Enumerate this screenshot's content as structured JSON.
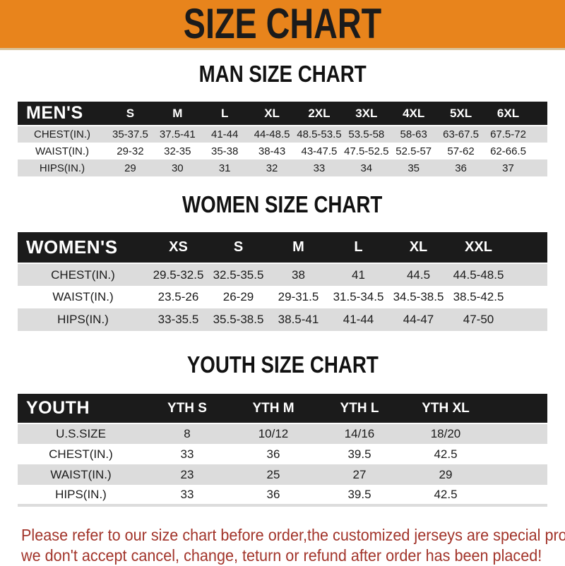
{
  "banner": {
    "title": "SIZE CHART"
  },
  "sections": {
    "man": {
      "title": "MAN SIZE CHART",
      "table": {
        "label": "MEN'S",
        "sizes": [
          "S",
          "M",
          "L",
          "XL",
          "2XL",
          "3XL",
          "4XL",
          "5XL",
          "6XL"
        ],
        "rows": [
          {
            "label": "CHEST(IN.)",
            "values": [
              "35-37.5",
              "37.5-41",
              "41-44",
              "44-48.5",
              "48.5-53.5",
              "53.5-58",
              "58-63",
              "63-67.5",
              "67.5-72"
            ]
          },
          {
            "label": "WAIST(IN.)",
            "values": [
              "29-32",
              "32-35",
              "35-38",
              "38-43",
              "43-47.5",
              "47.5-52.5",
              "52.5-57",
              "57-62",
              "62-66.5"
            ]
          },
          {
            "label": "HIPS(IN.)",
            "values": [
              "29",
              "30",
              "31",
              "32",
              "33",
              "34",
              "35",
              "36",
              "37"
            ]
          }
        ]
      }
    },
    "women": {
      "title": "WOMEN SIZE CHART",
      "table": {
        "label": "WOMEN'S",
        "sizes": [
          "XS",
          "S",
          "M",
          "L",
          "XL",
          "XXL"
        ],
        "rows": [
          {
            "label": "CHEST(IN.)",
            "values": [
              "29.5-32.5",
              "32.5-35.5",
              "38",
              "41",
              "44.5",
              "44.5-48.5"
            ]
          },
          {
            "label": "WAIST(IN.)",
            "values": [
              "23.5-26",
              "26-29",
              "29-31.5",
              "31.5-34.5",
              "34.5-38.5",
              "38.5-42.5"
            ]
          },
          {
            "label": "HIPS(IN.)",
            "values": [
              "33-35.5",
              "35.5-38.5",
              "38.5-41",
              "41-44",
              "44-47",
              "47-50"
            ]
          }
        ]
      }
    },
    "youth": {
      "title": "YOUTH SIZE CHART",
      "table": {
        "label": "YOUTH",
        "sizes": [
          "YTH S",
          "YTH M",
          "YTH L",
          "YTH XL"
        ],
        "rows": [
          {
            "label": "U.S.SIZE",
            "values": [
              "8",
              "10/12",
              "14/16",
              "18/20"
            ]
          },
          {
            "label": "CHEST(IN.)",
            "values": [
              "33",
              "36",
              "39.5",
              "42.5"
            ]
          },
          {
            "label": "WAIST(IN.)",
            "values": [
              "23",
              "25",
              "27",
              "29"
            ]
          },
          {
            "label": "HIPS(IN.)",
            "values": [
              "33",
              "36",
              "39.5",
              "42.5"
            ]
          }
        ]
      }
    }
  },
  "footer": {
    "line1": "Please refer to our size chart before order,the customized jerseys are special products,",
    "line2": "we don't accept cancel, change, teturn or refund after order has been placed!"
  },
  "colors": {
    "banner_orange": "#E8841C",
    "header_bar_black": "#1b1b1b",
    "stripe_gray": "#dcdcdc",
    "footer_red": "#A2342A"
  }
}
